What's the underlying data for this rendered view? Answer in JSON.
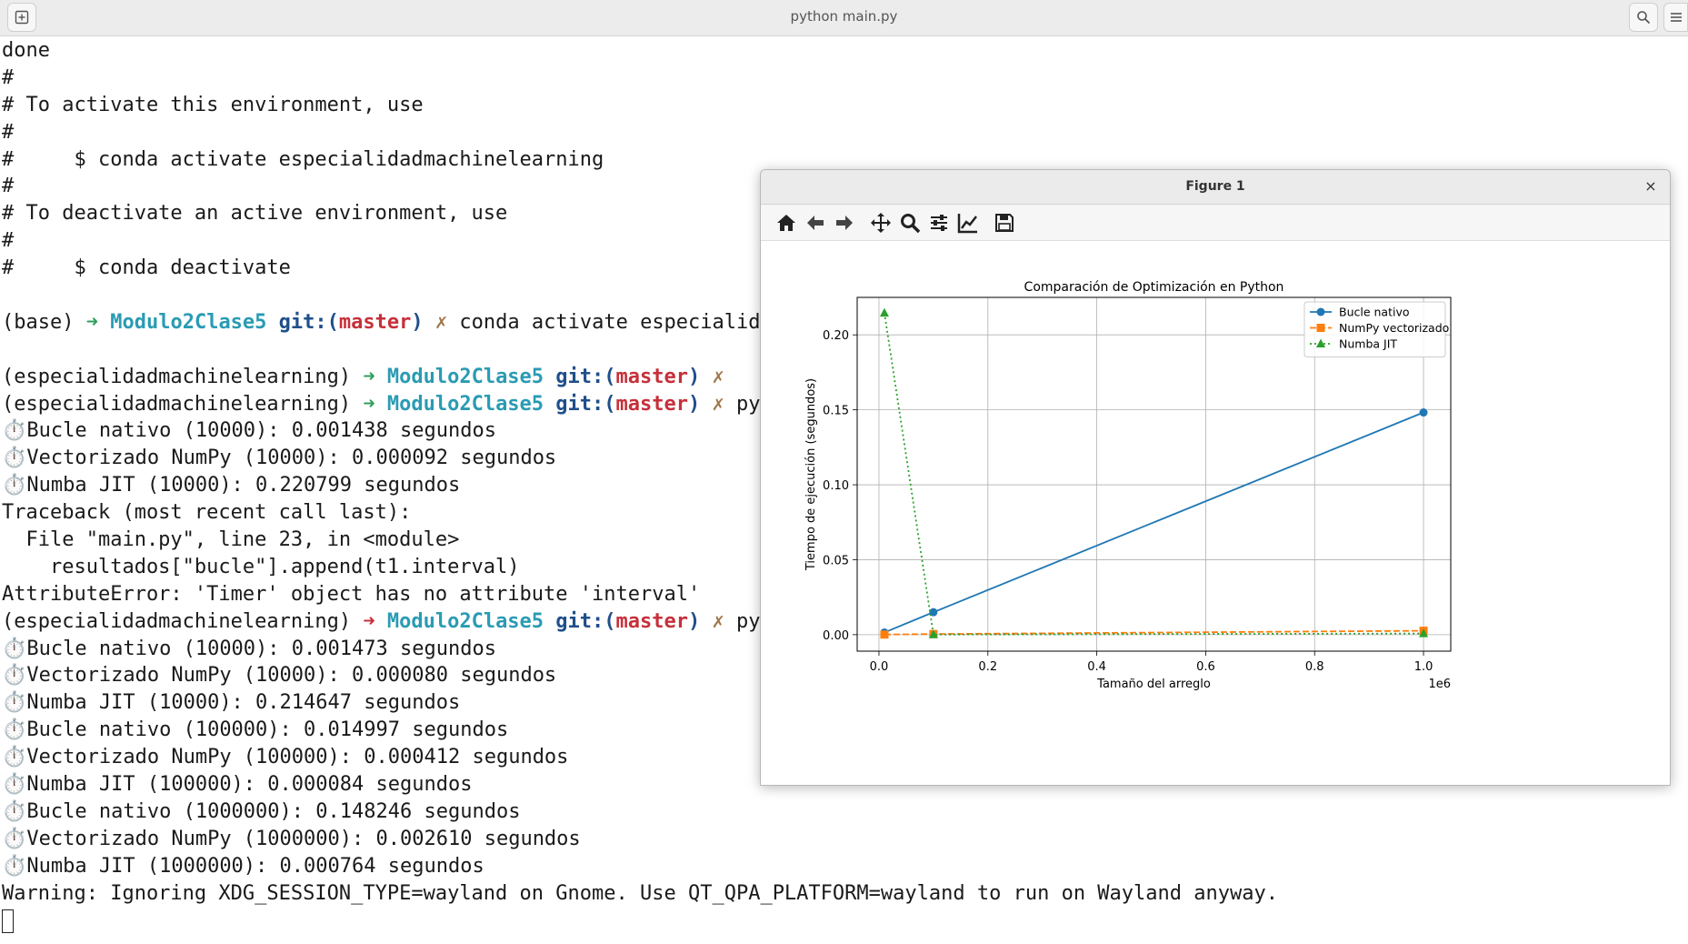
{
  "window": {
    "title": "python main.py",
    "new_tab_icon": "new-tab-icon",
    "search_icon": "search-icon",
    "menu_icon": "menu-icon"
  },
  "terminal": {
    "lines": [
      "done",
      "#",
      "# To activate this environment, use",
      "#",
      "#     $ conda activate especialidadmachinelearning",
      "#",
      "# To deactivate an active environment, use",
      "#",
      "#     $ conda deactivate",
      "",
      "",
      "",
      "",
      "",
      "⏱️Bucle nativo (10000): 0.001438 segundos",
      "⏱️Vectorizado NumPy (10000): 0.000092 segundos",
      "⏱️Numba JIT (10000): 0.220799 segundos",
      "Traceback (most recent call last):",
      "  File \"main.py\", line 23, in <module>",
      "    resultados[\"bucle\"].append(t1.interval)",
      "AttributeError: 'Timer' object has no attribute 'interval'",
      "",
      "⏱️Bucle nativo (10000): 0.001473 segundos",
      "⏱️Vectorizado NumPy (10000): 0.000080 segundos",
      "⏱️Numba JIT (10000): 0.214647 segundos",
      "⏱️Bucle nativo (100000): 0.014997 segundos",
      "⏱️Vectorizado NumPy (100000): 0.000412 segundos",
      "⏱️Numba JIT (100000): 0.000084 segundos",
      "⏱️Bucle nativo (1000000): 0.148246 segundos",
      "⏱️Vectorizado NumPy (1000000): 0.002610 segundos",
      "⏱️Numba JIT (1000000): 0.000764 segundos",
      "Warning: Ignoring XDG_SESSION_TYPE=wayland on Gnome. Use QT_QPA_PLATFORM=wayland to run on Wayland anyway."
    ],
    "prompts": [
      {
        "row": 10,
        "env": "(base)",
        "arrow": "➜",
        "arrow_color": "#2f9e5c",
        "dir": "Modulo2Clase5",
        "git": "git:(",
        "branch": "master",
        "git_close": ")",
        "dirty": "✗",
        "cmd": "conda activate especialida"
      },
      {
        "row": 12,
        "env": "(especialidadmachinelearning)",
        "arrow": "➜",
        "arrow_color": "#2f9e5c",
        "dir": "Modulo2Clase5",
        "git": "git:(",
        "branch": "master",
        "git_close": ")",
        "dirty": "✗",
        "cmd": ""
      },
      {
        "row": 13,
        "env": "(especialidadmachinelearning)",
        "arrow": "➜",
        "arrow_color": "#2f9e5c",
        "dir": "Modulo2Clase5",
        "git": "git:(",
        "branch": "master",
        "git_close": ")",
        "dirty": "✗",
        "cmd": "py"
      },
      {
        "row": 21,
        "env": "(especialidadmachinelearning)",
        "arrow": "➜",
        "arrow_color": "#c6303a",
        "dir": "Modulo2Clase5",
        "git": "git:(",
        "branch": "master",
        "git_close": ")",
        "dirty": "✗",
        "cmd": "py"
      }
    ]
  },
  "figure": {
    "title": "Figure 1",
    "close_label": "×",
    "toolbar": [
      "home-icon",
      "back-icon",
      "forward-icon",
      "pan-icon",
      "zoom-icon",
      "configure-subplots-icon",
      "edit-axis-icon",
      "save-icon"
    ]
  },
  "chart_data": {
    "type": "line",
    "title": "Comparación de Optimización en Python",
    "xlabel": "Tamaño del arreglo",
    "ylabel": "Tiempo de ejecución (segundos)",
    "x_offset_label": "1e6",
    "x": [
      10000,
      100000,
      1000000
    ],
    "xlim": [
      -40000,
      1050000
    ],
    "ylim": [
      -0.011,
      0.225
    ],
    "xticks": [
      0.0,
      0.2,
      0.4,
      0.6,
      0.8,
      1.0
    ],
    "xtick_labels": [
      "0.0",
      "0.2",
      "0.4",
      "0.6",
      "0.8",
      "1.0"
    ],
    "yticks": [
      0.0,
      0.05,
      0.1,
      0.15,
      0.2
    ],
    "ytick_labels": [
      "0.00",
      "0.05",
      "0.10",
      "0.15",
      "0.20"
    ],
    "grid": true,
    "legend_position": "top-right",
    "series": [
      {
        "name": "Bucle nativo",
        "values": [
          0.001473,
          0.014997,
          0.148246
        ],
        "color": "#1f77b4",
        "dash": "solid",
        "marker": "circle"
      },
      {
        "name": "NumPy vectorizado",
        "values": [
          8e-05,
          0.000412,
          0.00261
        ],
        "color": "#ff7f0e",
        "dash": "dashed",
        "marker": "square"
      },
      {
        "name": "Numba JIT",
        "values": [
          0.214647,
          8.4e-05,
          0.000764
        ],
        "color": "#2ca02c",
        "dash": "dotted",
        "marker": "triangle"
      }
    ]
  }
}
